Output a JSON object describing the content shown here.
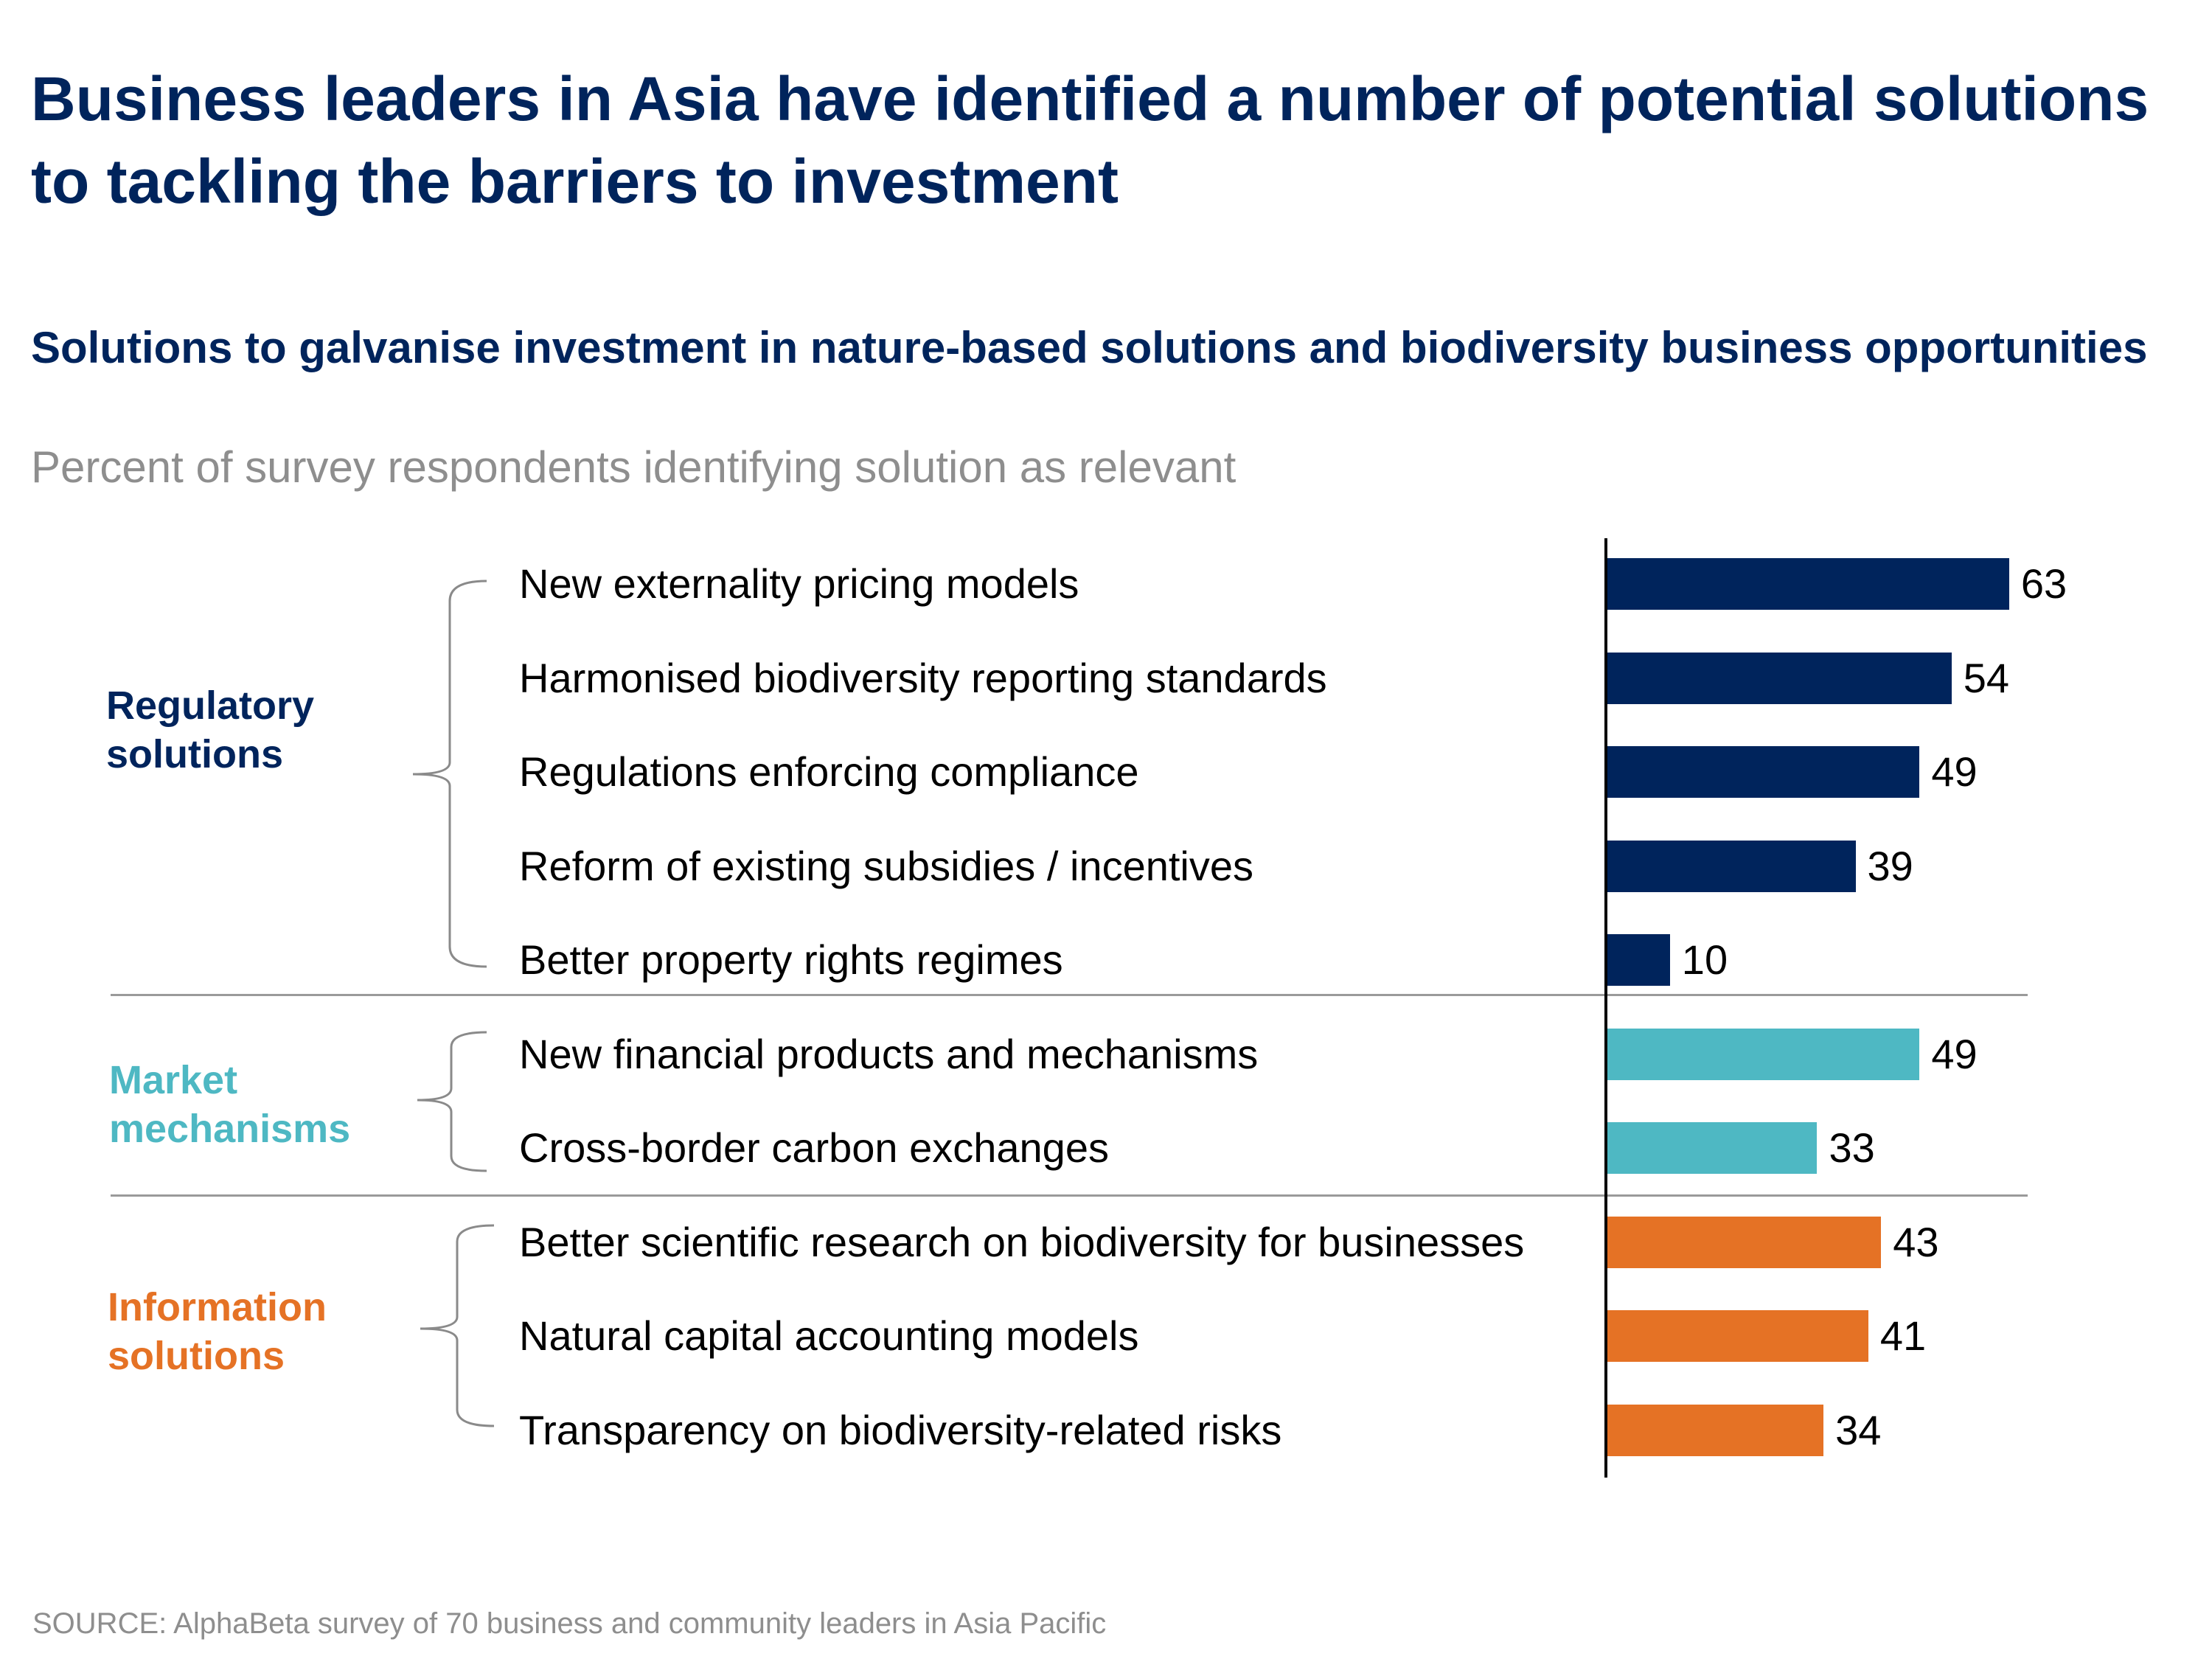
{
  "headline": "Business leaders in Asia have identified a number of potential solutions to tackling the barriers to investment",
  "source": "SOURCE: AlphaBeta survey of 70 business and community leaders in Asia Pacific",
  "colors": {
    "navy": "#00245c",
    "teal": "#4eb8c3",
    "orange": "#e57225",
    "separator": "#9a9a9a",
    "muted_text": "#8e8e8e"
  },
  "groups": [
    {
      "label": "Regulatory solutions",
      "color": "#00245c"
    },
    {
      "label": "Market mechanisms",
      "color": "#4eb8c3"
    },
    {
      "label": "Information solutions",
      "color": "#e57225"
    }
  ],
  "chart_data": {
    "type": "bar",
    "orientation": "horizontal",
    "title": "Solutions to galvanise investment in nature-based solutions and biodiversity business opportunities",
    "subtitle": "Percent of survey respondents identifying solution as relevant",
    "xlim": [
      0,
      100
    ],
    "categories": [
      "New externality pricing models",
      "Harmonised biodiversity reporting standards",
      "Regulations enforcing compliance",
      "Reform of existing subsidies / incentives",
      "Better property rights regimes",
      "New financial products and mechanisms",
      "Cross-border carbon exchanges",
      "Better scientific research on biodiversity for businesses",
      "Natural capital accounting models",
      "Transparency on biodiversity-related risks"
    ],
    "values": [
      63,
      54,
      49,
      39,
      10,
      49,
      33,
      43,
      41,
      34
    ],
    "group_index": [
      0,
      0,
      0,
      0,
      0,
      1,
      1,
      2,
      2,
      2
    ],
    "grid": false,
    "legend": "none"
  }
}
